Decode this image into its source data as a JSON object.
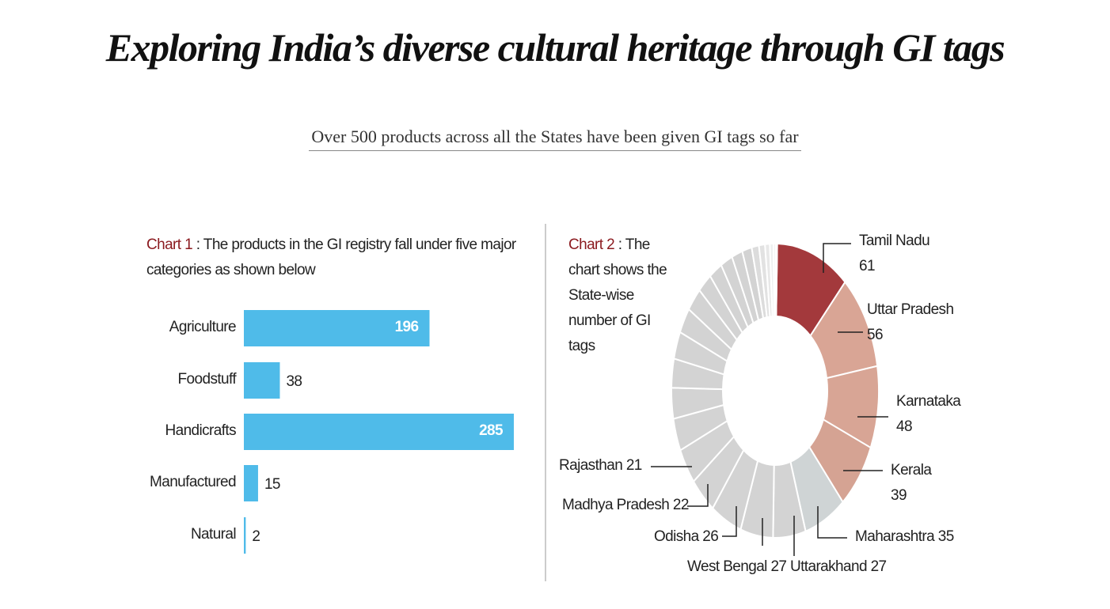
{
  "header": {
    "title": "Exploring India’s diverse cultural heritage through GI tags",
    "subtitle": "Over 500 products across all the States have been given GI tags so far"
  },
  "colors": {
    "bar": "#4fbbe9",
    "highlight_dark": "#a3393c",
    "highlight_light": "#d9a595",
    "gray": "#d2d2d2",
    "caption_accent": "#8b1a1f"
  },
  "chart_data": [
    {
      "type": "bar",
      "orientation": "horizontal",
      "caption_label": "Chart 1",
      "caption_text": ": The products in the GI registry fall under five major categories as shown below",
      "categories": [
        "Agriculture",
        "Foodstuff",
        "Handicrafts",
        "Manufactured",
        "Natural"
      ],
      "values": [
        196,
        38,
        285,
        15,
        2
      ],
      "value_labels": [
        "196",
        "38",
        "285",
        "15",
        "2"
      ],
      "xlim": [
        0,
        285
      ]
    },
    {
      "type": "pie",
      "style": "donut",
      "caption_label": "Chart 2",
      "caption_text": ": The chart shows the State-wise number of GI tags",
      "labeled_slices": [
        {
          "name": "Tamil Nadu",
          "value": 61,
          "label": "61"
        },
        {
          "name": "Uttar Pradesh",
          "value": 56,
          "label": "56"
        },
        {
          "name": "Karnataka",
          "value": 48,
          "label": "48"
        },
        {
          "name": "Kerala",
          "value": 39,
          "label": "39"
        },
        {
          "name": "Maharashtra",
          "value": 35,
          "label": "Maharashtra 35"
        },
        {
          "name": "Uttarakhand",
          "value": 27,
          "label": "Uttarakhand 27"
        },
        {
          "name": "West Bengal",
          "value": 27,
          "label": "West Bengal 27"
        },
        {
          "name": "Odisha",
          "value": 26,
          "label": "Odisha 26"
        },
        {
          "name": "Madhya Pradesh",
          "value": 22,
          "label": "Madhya Pradesh 22"
        },
        {
          "name": "Rajasthan",
          "value": 21,
          "label": "Rajasthan 21"
        }
      ],
      "unlabeled_slice_values_estimated": [
        19,
        18,
        17,
        16,
        15,
        14,
        12,
        11,
        10,
        9,
        8,
        6,
        5,
        4,
        3,
        2,
        1
      ]
    }
  ]
}
